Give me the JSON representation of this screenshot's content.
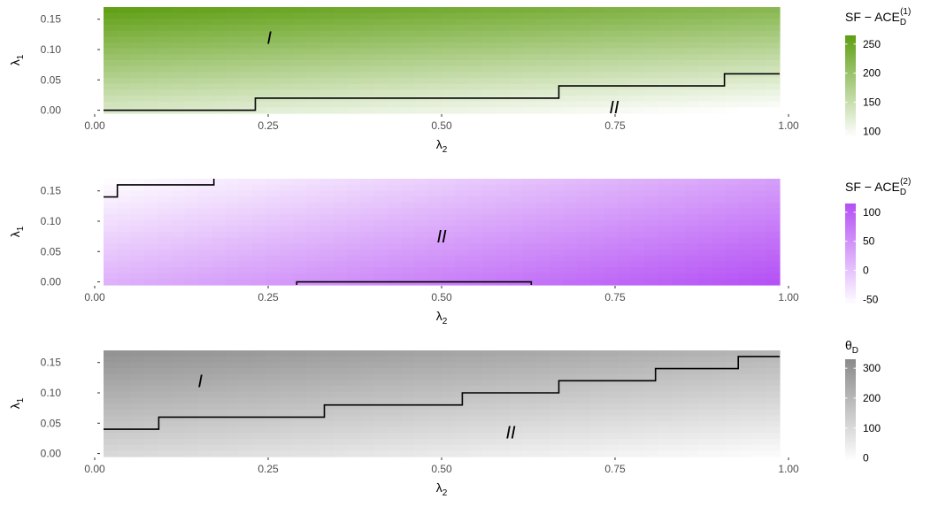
{
  "chart_data": [
    {
      "type": "heatmap",
      "id": "panel1",
      "xlabel": "λ",
      "xlabel_sub": "2",
      "ylabel": "λ",
      "ylabel_sub": "1",
      "xlim": [
        0,
        1
      ],
      "ylim": [
        -0.005,
        0.17
      ],
      "x_ticks": [
        0,
        0.25,
        0.5,
        0.75,
        1
      ],
      "x_tick_labels": [
        "0.00",
        "0.25",
        "0.50",
        "0.75",
        "1.00"
      ],
      "y_ticks": [
        0,
        0.05,
        0.1,
        0.15
      ],
      "y_tick_labels": [
        "0.00",
        "0.05",
        "0.10",
        "0.15"
      ],
      "legend": {
        "title": "SF − ACE",
        "title_sub": "D",
        "title_sup": "(1)",
        "ticks": [
          250,
          200,
          150,
          100
        ],
        "tick_labels": [
          "250",
          "200",
          "150",
          "100"
        ],
        "range": [
          90,
          265
        ],
        "low_color": "#ffffff",
        "high_color": "#5e9e12"
      },
      "fill_direction": "increases with λ1, decreases with λ2",
      "boundary": [
        [
          0.01,
          0.0
        ],
        [
          0.23,
          0.0
        ],
        [
          0.23,
          0.02
        ],
        [
          0.67,
          0.02
        ],
        [
          0.67,
          0.04
        ],
        [
          0.91,
          0.04
        ],
        [
          0.91,
          0.06
        ],
        [
          0.99,
          0.06
        ]
      ],
      "regions": [
        {
          "label": "I",
          "x": 0.25,
          "y": 0.12
        },
        {
          "label": "II",
          "x": 0.75,
          "y": 0.005
        }
      ]
    },
    {
      "type": "heatmap",
      "id": "panel2",
      "xlabel": "λ",
      "xlabel_sub": "2",
      "ylabel": "λ",
      "ylabel_sub": "1",
      "xlim": [
        0,
        1
      ],
      "ylim": [
        -0.005,
        0.17
      ],
      "x_ticks": [
        0,
        0.25,
        0.5,
        0.75,
        1
      ],
      "x_tick_labels": [
        "0.00",
        "0.25",
        "0.50",
        "0.75",
        "1.00"
      ],
      "y_ticks": [
        0,
        0.05,
        0.1,
        0.15
      ],
      "y_tick_labels": [
        "0.00",
        "0.05",
        "0.10",
        "0.15"
      ],
      "legend": {
        "title": "SF − ACE",
        "title_sub": "D",
        "title_sup": "(2)",
        "ticks": [
          100,
          50,
          0,
          -50
        ],
        "tick_labels": [
          "100",
          "50",
          "0",
          "-50"
        ],
        "range": [
          -60,
          115
        ],
        "low_color": "#ffffff",
        "high_color": "#b44ff5"
      },
      "fill_direction": "increases with λ2, decreases with λ1",
      "boundary_segments": [
        [
          [
            0.01,
            0.14
          ],
          [
            0.03,
            0.14
          ],
          [
            0.03,
            0.16
          ],
          [
            0.17,
            0.16
          ],
          [
            0.17,
            0.17
          ]
        ],
        [
          [
            0.29,
            -0.005
          ],
          [
            0.29,
            0.0
          ],
          [
            0.63,
            0.0
          ],
          [
            0.63,
            -0.005
          ]
        ]
      ],
      "regions": [
        {
          "label": "II",
          "x": 0.5,
          "y": 0.075
        }
      ]
    },
    {
      "type": "heatmap",
      "id": "panel3",
      "xlabel": "λ",
      "xlabel_sub": "2",
      "ylabel": "λ",
      "ylabel_sub": "1",
      "xlim": [
        0,
        1
      ],
      "ylim": [
        -0.005,
        0.17
      ],
      "x_ticks": [
        0,
        0.25,
        0.5,
        0.75,
        1
      ],
      "x_tick_labels": [
        "0.00",
        "0.25",
        "0.50",
        "0.75",
        "1.00"
      ],
      "y_ticks": [
        0,
        0.05,
        0.1,
        0.15
      ],
      "y_tick_labels": [
        "0.00",
        "0.05",
        "0.10",
        "0.15"
      ],
      "legend": {
        "title": "θ",
        "title_sub": "D",
        "ticks": [
          300,
          200,
          100,
          0
        ],
        "tick_labels": [
          "300",
          "200",
          "100",
          "0"
        ],
        "range": [
          -10,
          330
        ],
        "low_color": "#ffffff",
        "high_color": "#8a8a8a"
      },
      "fill_direction": "increases with λ1, decreases with λ2",
      "boundary": [
        [
          0.01,
          0.04
        ],
        [
          0.09,
          0.04
        ],
        [
          0.09,
          0.06
        ],
        [
          0.33,
          0.06
        ],
        [
          0.33,
          0.08
        ],
        [
          0.53,
          0.08
        ],
        [
          0.53,
          0.1
        ],
        [
          0.67,
          0.1
        ],
        [
          0.67,
          0.12
        ],
        [
          0.81,
          0.12
        ],
        [
          0.81,
          0.14
        ],
        [
          0.93,
          0.14
        ],
        [
          0.93,
          0.16
        ],
        [
          0.99,
          0.16
        ]
      ],
      "regions": [
        {
          "label": "I",
          "x": 0.15,
          "y": 0.12
        },
        {
          "label": "II",
          "x": 0.6,
          "y": 0.035
        }
      ]
    }
  ]
}
